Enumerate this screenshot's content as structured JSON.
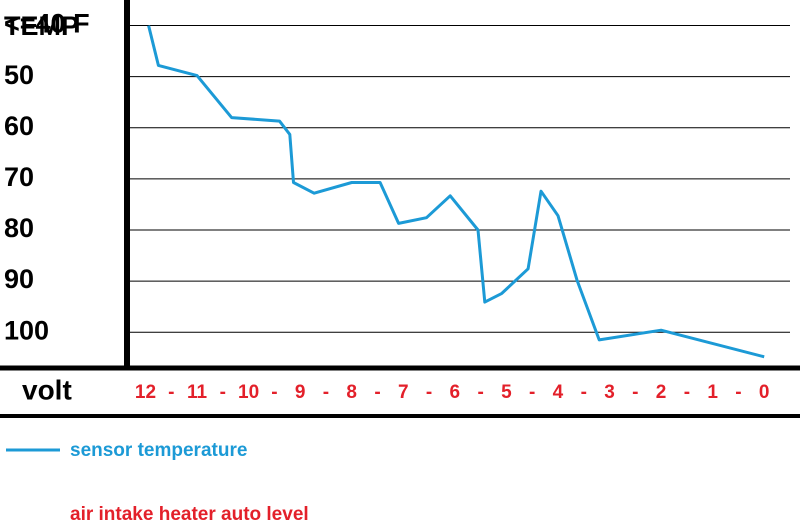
{
  "chart_data": {
    "type": "line",
    "y_label": "TEMP",
    "x_label": "volt",
    "x_separator": "-",
    "x": [
      11.94,
      11.75,
      11,
      10.33,
      9.4,
      9.2,
      9.13,
      8.73,
      8,
      7.45,
      7.09,
      6.55,
      6.09,
      5.55,
      5.42,
      5.09,
      4.58,
      4.33,
      4,
      3.63,
      3.2,
      2,
      0
    ],
    "series": [
      {
        "name": "sensor temperature",
        "color": "#1c9ad6",
        "values": [
          40,
          47.8,
          49.8,
          58,
          58.7,
          61.3,
          70.7,
          72.8,
          70.7,
          70.7,
          78.7,
          77.6,
          73.3,
          80,
          94.1,
          92.4,
          87.6,
          72.4,
          77.2,
          89.8,
          101.5,
          99.6,
          104.8
        ]
      }
    ],
    "note": {
      "text": "air intake heater auto level",
      "color": "#e3202a"
    },
    "xlim": [
      12.3,
      -0.5
    ],
    "xticks": [
      12,
      11,
      10,
      9,
      8,
      7,
      6,
      5,
      4,
      3,
      2,
      1,
      0
    ],
    "ylim": [
      35,
      107
    ],
    "yticks": [
      {
        "value": 40,
        "label": "<=40 F"
      },
      50,
      60,
      70,
      80,
      90,
      100
    ],
    "grid": true
  }
}
